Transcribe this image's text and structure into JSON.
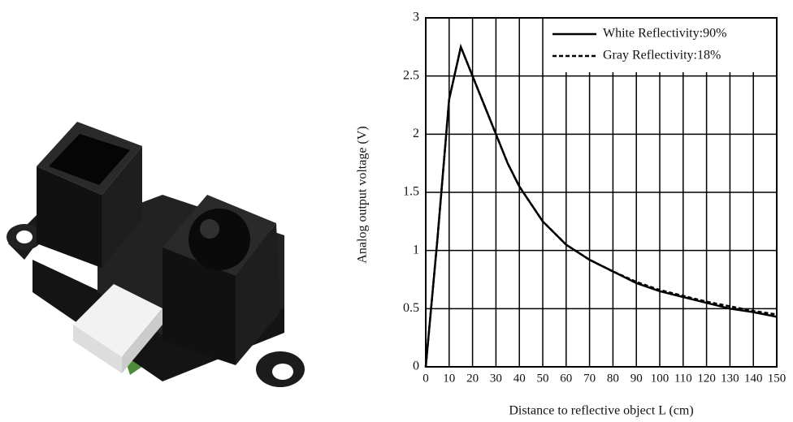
{
  "chart_data": {
    "type": "line",
    "xlabel": "Distance to reflective object L (cm)",
    "ylabel": "Analog output voltage (V)",
    "x": [
      0,
      5,
      10,
      15,
      20,
      25,
      30,
      35,
      40,
      50,
      60,
      70,
      80,
      90,
      100,
      110,
      120,
      130,
      140,
      150
    ],
    "series": [
      {
        "name": "White Reflectivity:90%",
        "color": "#000000",
        "line_style": "solid",
        "values": [
          0,
          1.1,
          2.3,
          2.75,
          2.5,
          2.25,
          2.0,
          1.75,
          1.55,
          1.25,
          1.05,
          0.92,
          0.82,
          0.72,
          0.65,
          0.6,
          0.55,
          0.5,
          0.47,
          0.43
        ]
      },
      {
        "name": "Gray Reflectivity:18%",
        "color": "#000000",
        "line_style": "dashed",
        "values": [
          0,
          1.1,
          2.3,
          2.75,
          2.5,
          2.25,
          2.0,
          1.75,
          1.55,
          1.25,
          1.05,
          0.92,
          0.82,
          0.73,
          0.66,
          0.61,
          0.56,
          0.52,
          0.48,
          0.45
        ]
      }
    ],
    "xlim": [
      0,
      150
    ],
    "xticks": [
      0,
      10,
      20,
      30,
      40,
      50,
      60,
      70,
      80,
      90,
      100,
      110,
      120,
      130,
      140,
      150
    ],
    "ylim": [
      0,
      3
    ],
    "yticks": [
      0,
      0.5,
      1,
      1.5,
      2,
      2.5,
      3
    ],
    "grid": true,
    "legend": "upper right"
  }
}
